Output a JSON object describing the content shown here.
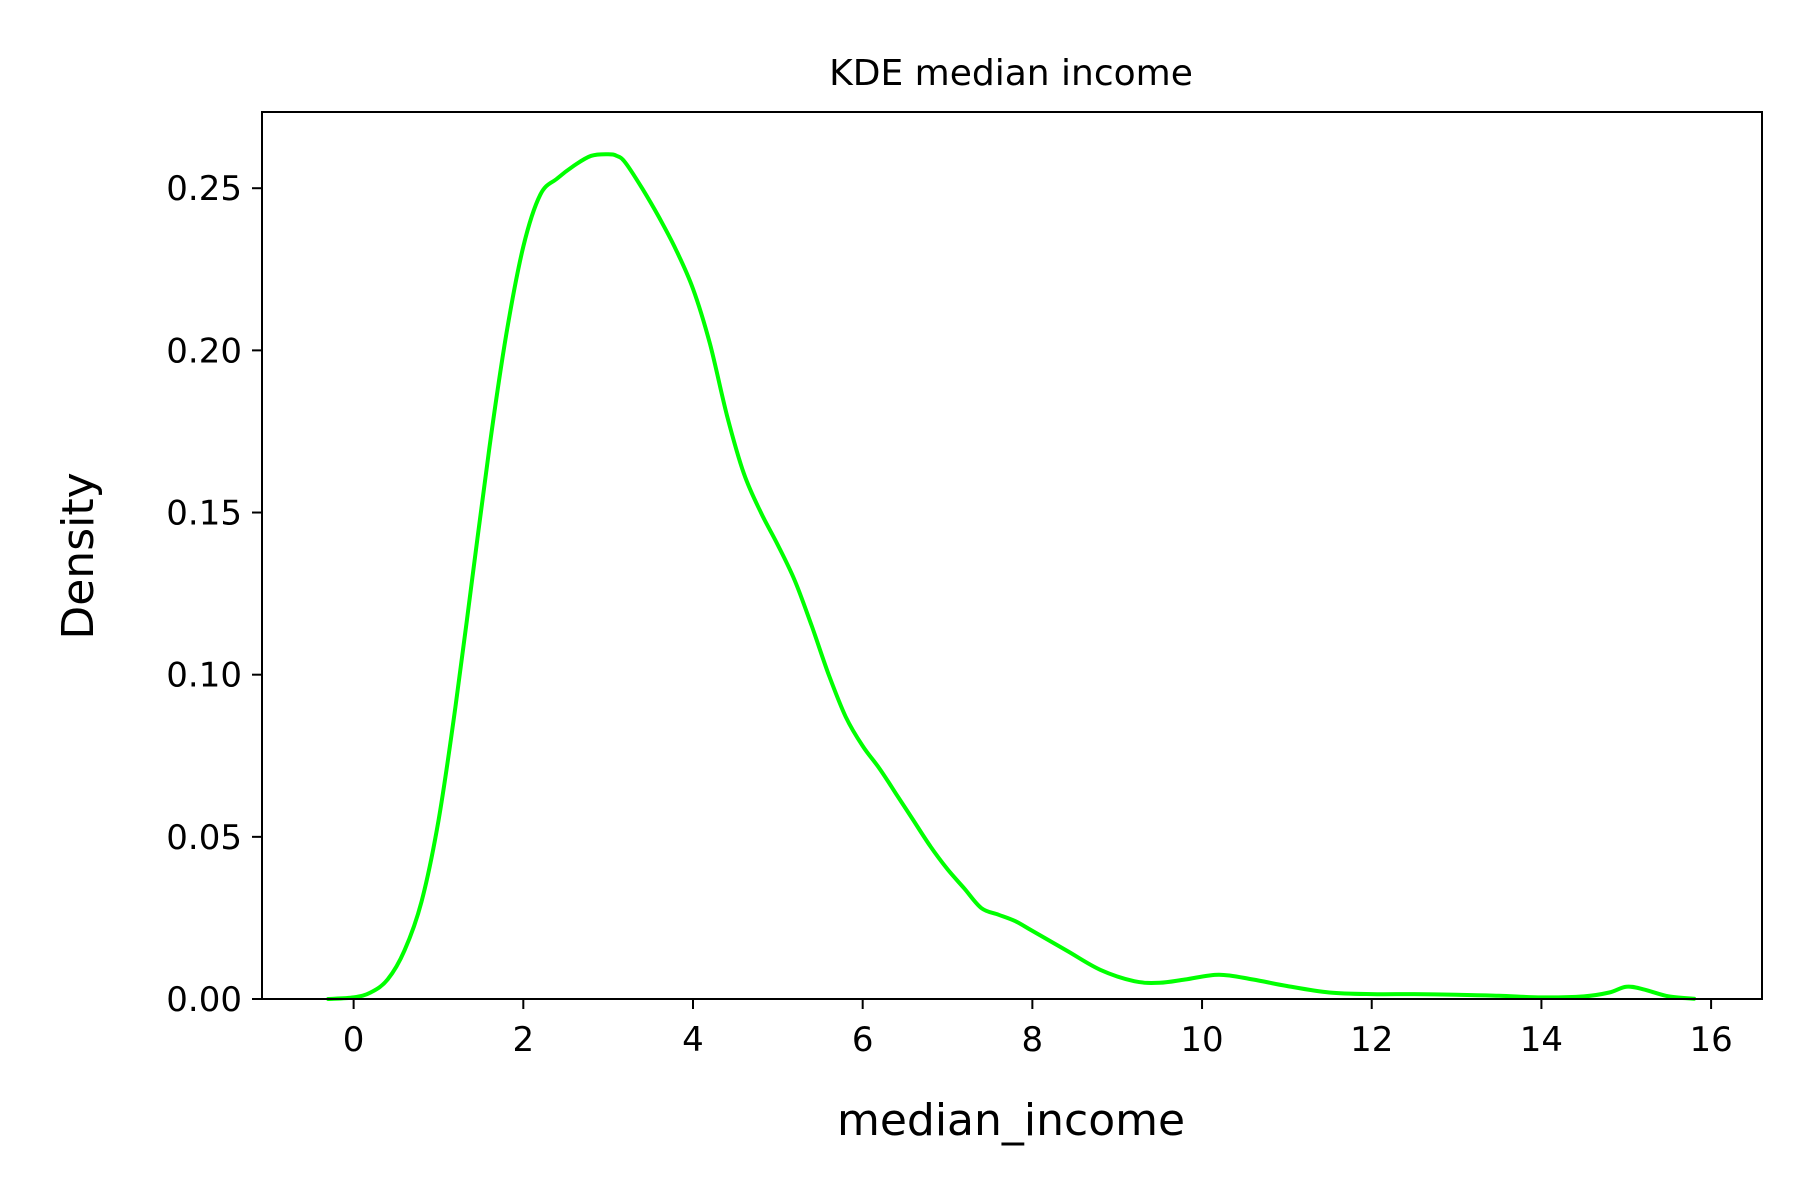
{
  "chart_data": {
    "type": "line",
    "title": "KDE median income",
    "xlabel": "median_income",
    "ylabel": "Density",
    "xlim": [
      -1.08,
      16.6
    ],
    "ylim": [
      0,
      0.2735
    ],
    "xticks": [
      0,
      2,
      4,
      6,
      8,
      10,
      12,
      14,
      16
    ],
    "xtick_labels": [
      "0",
      "2",
      "4",
      "6",
      "8",
      "10",
      "12",
      "14",
      "16"
    ],
    "yticks": [
      0.0,
      0.05,
      0.1,
      0.15,
      0.2,
      0.25
    ],
    "ytick_labels": [
      "0.00",
      "0.05",
      "0.10",
      "0.15",
      "0.20",
      "0.25"
    ],
    "grid": false,
    "legend": "none",
    "colors": {
      "line": "#00ff00",
      "axes": "#000000",
      "background": "#ffffff"
    },
    "series": [
      {
        "x": [
          -0.3,
          0.0,
          0.2,
          0.4,
          0.6,
          0.8,
          1.0,
          1.2,
          1.4,
          1.6,
          1.8,
          2.0,
          2.2,
          2.4,
          2.6,
          2.8,
          3.0,
          3.1,
          3.2,
          3.4,
          3.6,
          3.8,
          4.0,
          4.2,
          4.4,
          4.6,
          4.8,
          5.0,
          5.2,
          5.4,
          5.6,
          5.8,
          6.0,
          6.2,
          6.4,
          6.6,
          6.8,
          7.0,
          7.2,
          7.4,
          7.6,
          7.8,
          8.0,
          8.4,
          8.8,
          9.2,
          9.5,
          9.8,
          10.2,
          10.6,
          11.0,
          11.5,
          12.0,
          12.5,
          13.0,
          13.5,
          14.0,
          14.5,
          14.8,
          15.0,
          15.2,
          15.5,
          15.8
        ],
        "y": [
          0.0,
          0.0005,
          0.002,
          0.006,
          0.015,
          0.03,
          0.055,
          0.09,
          0.13,
          0.17,
          0.205,
          0.232,
          0.248,
          0.253,
          0.257,
          0.26,
          0.2605,
          0.26,
          0.258,
          0.25,
          0.241,
          0.231,
          0.219,
          0.202,
          0.18,
          0.162,
          0.15,
          0.14,
          0.129,
          0.115,
          0.1,
          0.087,
          0.078,
          0.071,
          0.063,
          0.055,
          0.047,
          0.04,
          0.034,
          0.028,
          0.026,
          0.024,
          0.021,
          0.015,
          0.009,
          0.0055,
          0.005,
          0.006,
          0.0075,
          0.006,
          0.004,
          0.002,
          0.0015,
          0.0015,
          0.0013,
          0.001,
          0.0005,
          0.0008,
          0.002,
          0.0038,
          0.003,
          0.0008,
          0.0001
        ]
      }
    ]
  }
}
